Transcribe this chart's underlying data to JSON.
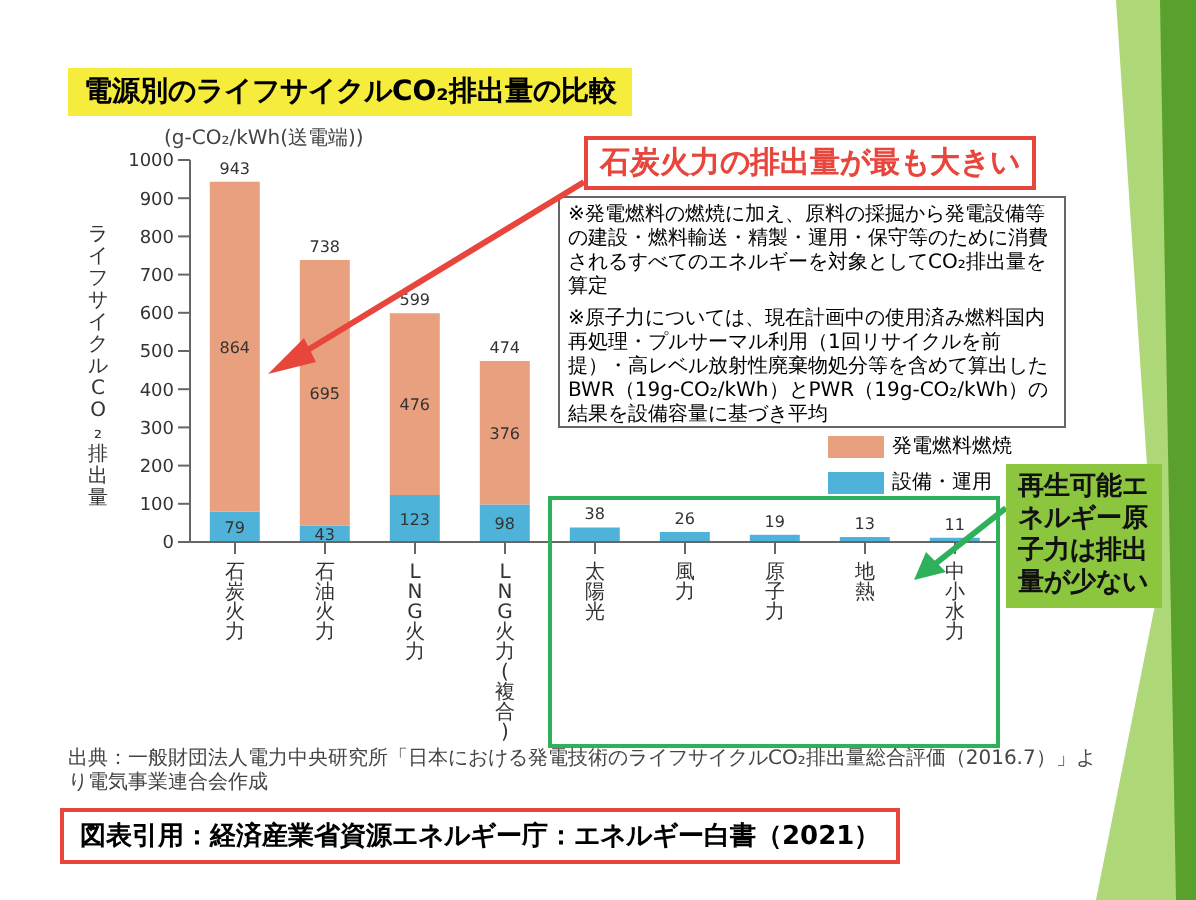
{
  "chart_data": {
    "type": "bar",
    "title": "電源別のライフサイクルCO₂排出量の比較",
    "ylabel": "ライフサイクルCO₂排出量",
    "categories": [
      "石炭火力",
      "石油火力",
      "LNG火力",
      "LNG火力(複合)",
      "太陽光",
      "風力",
      "原子力",
      "地熱",
      "中小水力"
    ],
    "stacked": true,
    "series": [
      {
        "name": "設備・運用",
        "color": "#4fb3d9",
        "values": [
          79,
          43,
          123,
          98,
          38,
          26,
          19,
          13,
          11
        ],
        "value_labels": [
          "79",
          "43",
          "123",
          "98",
          null,
          null,
          null,
          null,
          null
        ]
      },
      {
        "name": "発電燃料燃焼",
        "color": "#e8a07e",
        "values": [
          864,
          695,
          476,
          376,
          0,
          0,
          0,
          0,
          0
        ],
        "value_labels": [
          "864",
          "695",
          "476",
          "376",
          null,
          null,
          null,
          null,
          null
        ]
      }
    ],
    "totals": [
      "943",
      "738",
      "599",
      "474",
      "38",
      "26",
      "19",
      "13",
      "11"
    ],
    "ylim": [
      0,
      1000
    ],
    "yticks": [
      0,
      100,
      200,
      300,
      400,
      500,
      600,
      700,
      800,
      900,
      1000
    ],
    "legend": "right",
    "annotations": [
      "石炭火力の排出量が最も大きい",
      "再生可能エネルギー原子力は排出量が少ない",
      "※発電燃料の燃焼に加え、原料の採掘から発電設備等の建設・燃料輸送・精製・運用・保守等のために消費されるすべてのエネルギーを対象としてCO₂排出量を算定",
      "※原子力については、現在計画中の使用済み燃料国内再処理・プルサーマル利用（1回リサイクルを前提）・高レベル放射性廃棄物処分等を含めて算出したBWR（19g-CO₂/kWh）とPWR（19g-CO₂/kWh）の結果を設備容量に基づき平均",
      "出典：一般財団法人電力中央研究所「日本における発電技術のライフサイクルCO₂排出量総合評価（2016.7）」より電気事業連合会作成",
      "図表引用：経済産業省資源エネルギー庁：エネルギー白書（2021）",
      "(g-CO₂/kWh(送電端))"
    ]
  }
}
